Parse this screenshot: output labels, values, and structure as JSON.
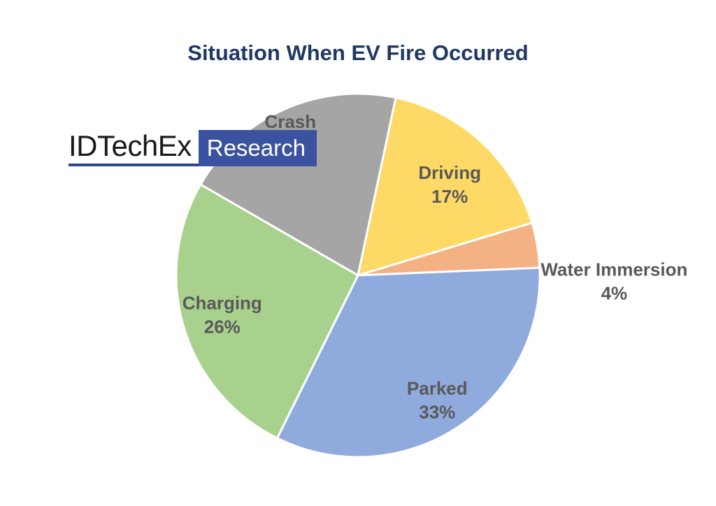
{
  "chart_data": {
    "type": "pie",
    "title": "Situation When EV Fire Occurred",
    "slices": [
      {
        "label": "Crash",
        "value": 20,
        "value_label": "20%",
        "color": "#a5a5a5"
      },
      {
        "label": "Driving",
        "value": 17,
        "value_label": "17%",
        "color": "#ffd966"
      },
      {
        "label": "Water Immersion",
        "value": 4,
        "value_label": "4%",
        "color": "#f4b183"
      },
      {
        "label": "Parked",
        "value": 33,
        "value_label": "33%",
        "color": "#8faadc"
      },
      {
        "label": "Charging",
        "value": 26,
        "value_label": "26%",
        "color": "#a9d18e"
      }
    ],
    "slice_border_color": "#ffffff",
    "label_color": "#595959"
  },
  "branding": {
    "company": "IDTechEx",
    "suffix": "Research",
    "accent_color": "#3a52a0"
  }
}
